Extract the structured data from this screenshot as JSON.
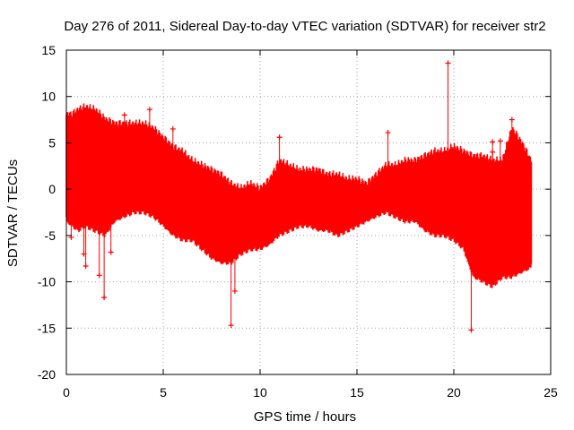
{
  "chart_data": {
    "type": "scatter",
    "title": "Day 276 of 2011, Sidereal Day-to-day VTEC variation (SDTVAR) for receiver str2",
    "xlabel": "GPS time / hours",
    "ylabel": "SDTVAR / TECUs",
    "xlim": [
      0,
      25
    ],
    "ylim": [
      -20,
      15
    ],
    "grid": true,
    "marker": "+",
    "color": "#ff0000",
    "x_ticks": [
      0,
      5,
      10,
      15,
      20,
      25
    ],
    "y_ticks": [
      -20,
      -15,
      -10,
      -5,
      0,
      5,
      10,
      15
    ],
    "series": [
      {
        "name": "SDTVAR",
        "envelope": {
          "x": [
            0.0,
            0.3,
            0.6,
            1.0,
            1.5,
            2.0,
            2.5,
            3.0,
            3.5,
            4.0,
            4.5,
            5.0,
            5.5,
            6.0,
            6.5,
            7.0,
            7.5,
            8.0,
            8.5,
            9.0,
            9.5,
            10.0,
            10.5,
            11.0,
            11.5,
            12.0,
            12.5,
            13.0,
            13.5,
            14.0,
            14.5,
            15.0,
            15.5,
            16.0,
            16.5,
            17.0,
            17.5,
            18.0,
            18.5,
            19.0,
            19.5,
            20.0,
            20.5,
            21.0,
            21.5,
            22.0,
            22.5,
            23.0,
            23.5,
            24.0
          ],
          "upper": [
            8.0,
            8.0,
            8.5,
            8.8,
            8.5,
            7.5,
            7.0,
            7.0,
            7.0,
            7.0,
            6.5,
            5.5,
            4.5,
            4.0,
            3.0,
            2.5,
            2.0,
            1.5,
            0.5,
            0.0,
            0.5,
            0.0,
            1.0,
            3.0,
            2.5,
            2.0,
            2.0,
            2.0,
            1.5,
            1.5,
            1.0,
            1.0,
            0.5,
            1.5,
            2.5,
            2.5,
            3.0,
            3.0,
            3.5,
            4.0,
            4.0,
            4.5,
            4.0,
            3.5,
            3.5,
            3.0,
            3.0,
            6.5,
            5.0,
            3.0
          ],
          "lower": [
            -3.0,
            -3.5,
            -4.0,
            -3.5,
            -4.0,
            -4.5,
            -3.0,
            -2.5,
            -2.0,
            -2.0,
            -2.5,
            -3.5,
            -4.5,
            -5.0,
            -5.0,
            -6.0,
            -7.0,
            -7.5,
            -7.5,
            -6.5,
            -6.0,
            -6.0,
            -5.5,
            -4.5,
            -4.0,
            -3.5,
            -3.5,
            -4.0,
            -4.0,
            -4.5,
            -4.0,
            -3.5,
            -3.0,
            -2.5,
            -2.0,
            -2.5,
            -3.0,
            -3.0,
            -4.0,
            -4.5,
            -4.5,
            -5.0,
            -6.0,
            -9.0,
            -9.5,
            -10.0,
            -9.0,
            -9.0,
            -8.5,
            -8.0
          ]
        },
        "outliers": [
          {
            "x": 0.25,
            "y": -5.2
          },
          {
            "x": 0.9,
            "y": -7.0
          },
          {
            "x": 1.0,
            "y": -8.3
          },
          {
            "x": 1.7,
            "y": -9.3
          },
          {
            "x": 1.95,
            "y": -11.7
          },
          {
            "x": 2.3,
            "y": -6.8
          },
          {
            "x": 3.0,
            "y": 8.0
          },
          {
            "x": 4.3,
            "y": 8.6
          },
          {
            "x": 5.5,
            "y": 6.5
          },
          {
            "x": 8.5,
            "y": -14.7
          },
          {
            "x": 8.7,
            "y": -11.0
          },
          {
            "x": 11.0,
            "y": 5.6
          },
          {
            "x": 16.6,
            "y": 6.1
          },
          {
            "x": 19.7,
            "y": 13.6
          },
          {
            "x": 20.9,
            "y": -15.2
          },
          {
            "x": 20.8,
            "y": -7.8
          },
          {
            "x": 22.0,
            "y": 5.1
          },
          {
            "x": 22.0,
            "y": 4.0
          },
          {
            "x": 22.4,
            "y": 5.2
          },
          {
            "x": 23.0,
            "y": 7.5
          }
        ]
      }
    ]
  }
}
